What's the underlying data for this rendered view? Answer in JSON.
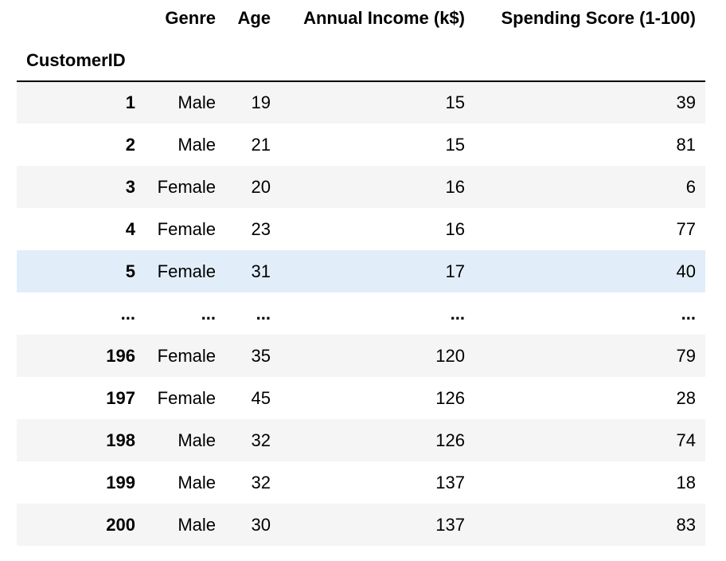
{
  "table": {
    "columns": [
      "Genre",
      "Age",
      "Annual Income (k$)",
      "Spending Score (1-100)"
    ],
    "index_name": "CustomerID",
    "rows": [
      {
        "id": "1",
        "genre": "Male",
        "age": "19",
        "income": "15",
        "score": "39"
      },
      {
        "id": "2",
        "genre": "Male",
        "age": "21",
        "income": "15",
        "score": "81"
      },
      {
        "id": "3",
        "genre": "Female",
        "age": "20",
        "income": "16",
        "score": "6"
      },
      {
        "id": "4",
        "genre": "Female",
        "age": "23",
        "income": "16",
        "score": "77"
      },
      {
        "id": "5",
        "genre": "Female",
        "age": "31",
        "income": "17",
        "score": "40"
      },
      {
        "id": "...",
        "genre": "...",
        "age": "...",
        "income": "...",
        "score": "..."
      },
      {
        "id": "196",
        "genre": "Female",
        "age": "35",
        "income": "120",
        "score": "79"
      },
      {
        "id": "197",
        "genre": "Female",
        "age": "45",
        "income": "126",
        "score": "28"
      },
      {
        "id": "198",
        "genre": "Male",
        "age": "32",
        "income": "126",
        "score": "74"
      },
      {
        "id": "199",
        "genre": "Male",
        "age": "32",
        "income": "137",
        "score": "18"
      },
      {
        "id": "200",
        "genre": "Male",
        "age": "30",
        "income": "137",
        "score": "83"
      }
    ]
  },
  "colors": {
    "stripe": "#f5f5f5",
    "hover": "#e1eefa",
    "border": "#000000"
  }
}
